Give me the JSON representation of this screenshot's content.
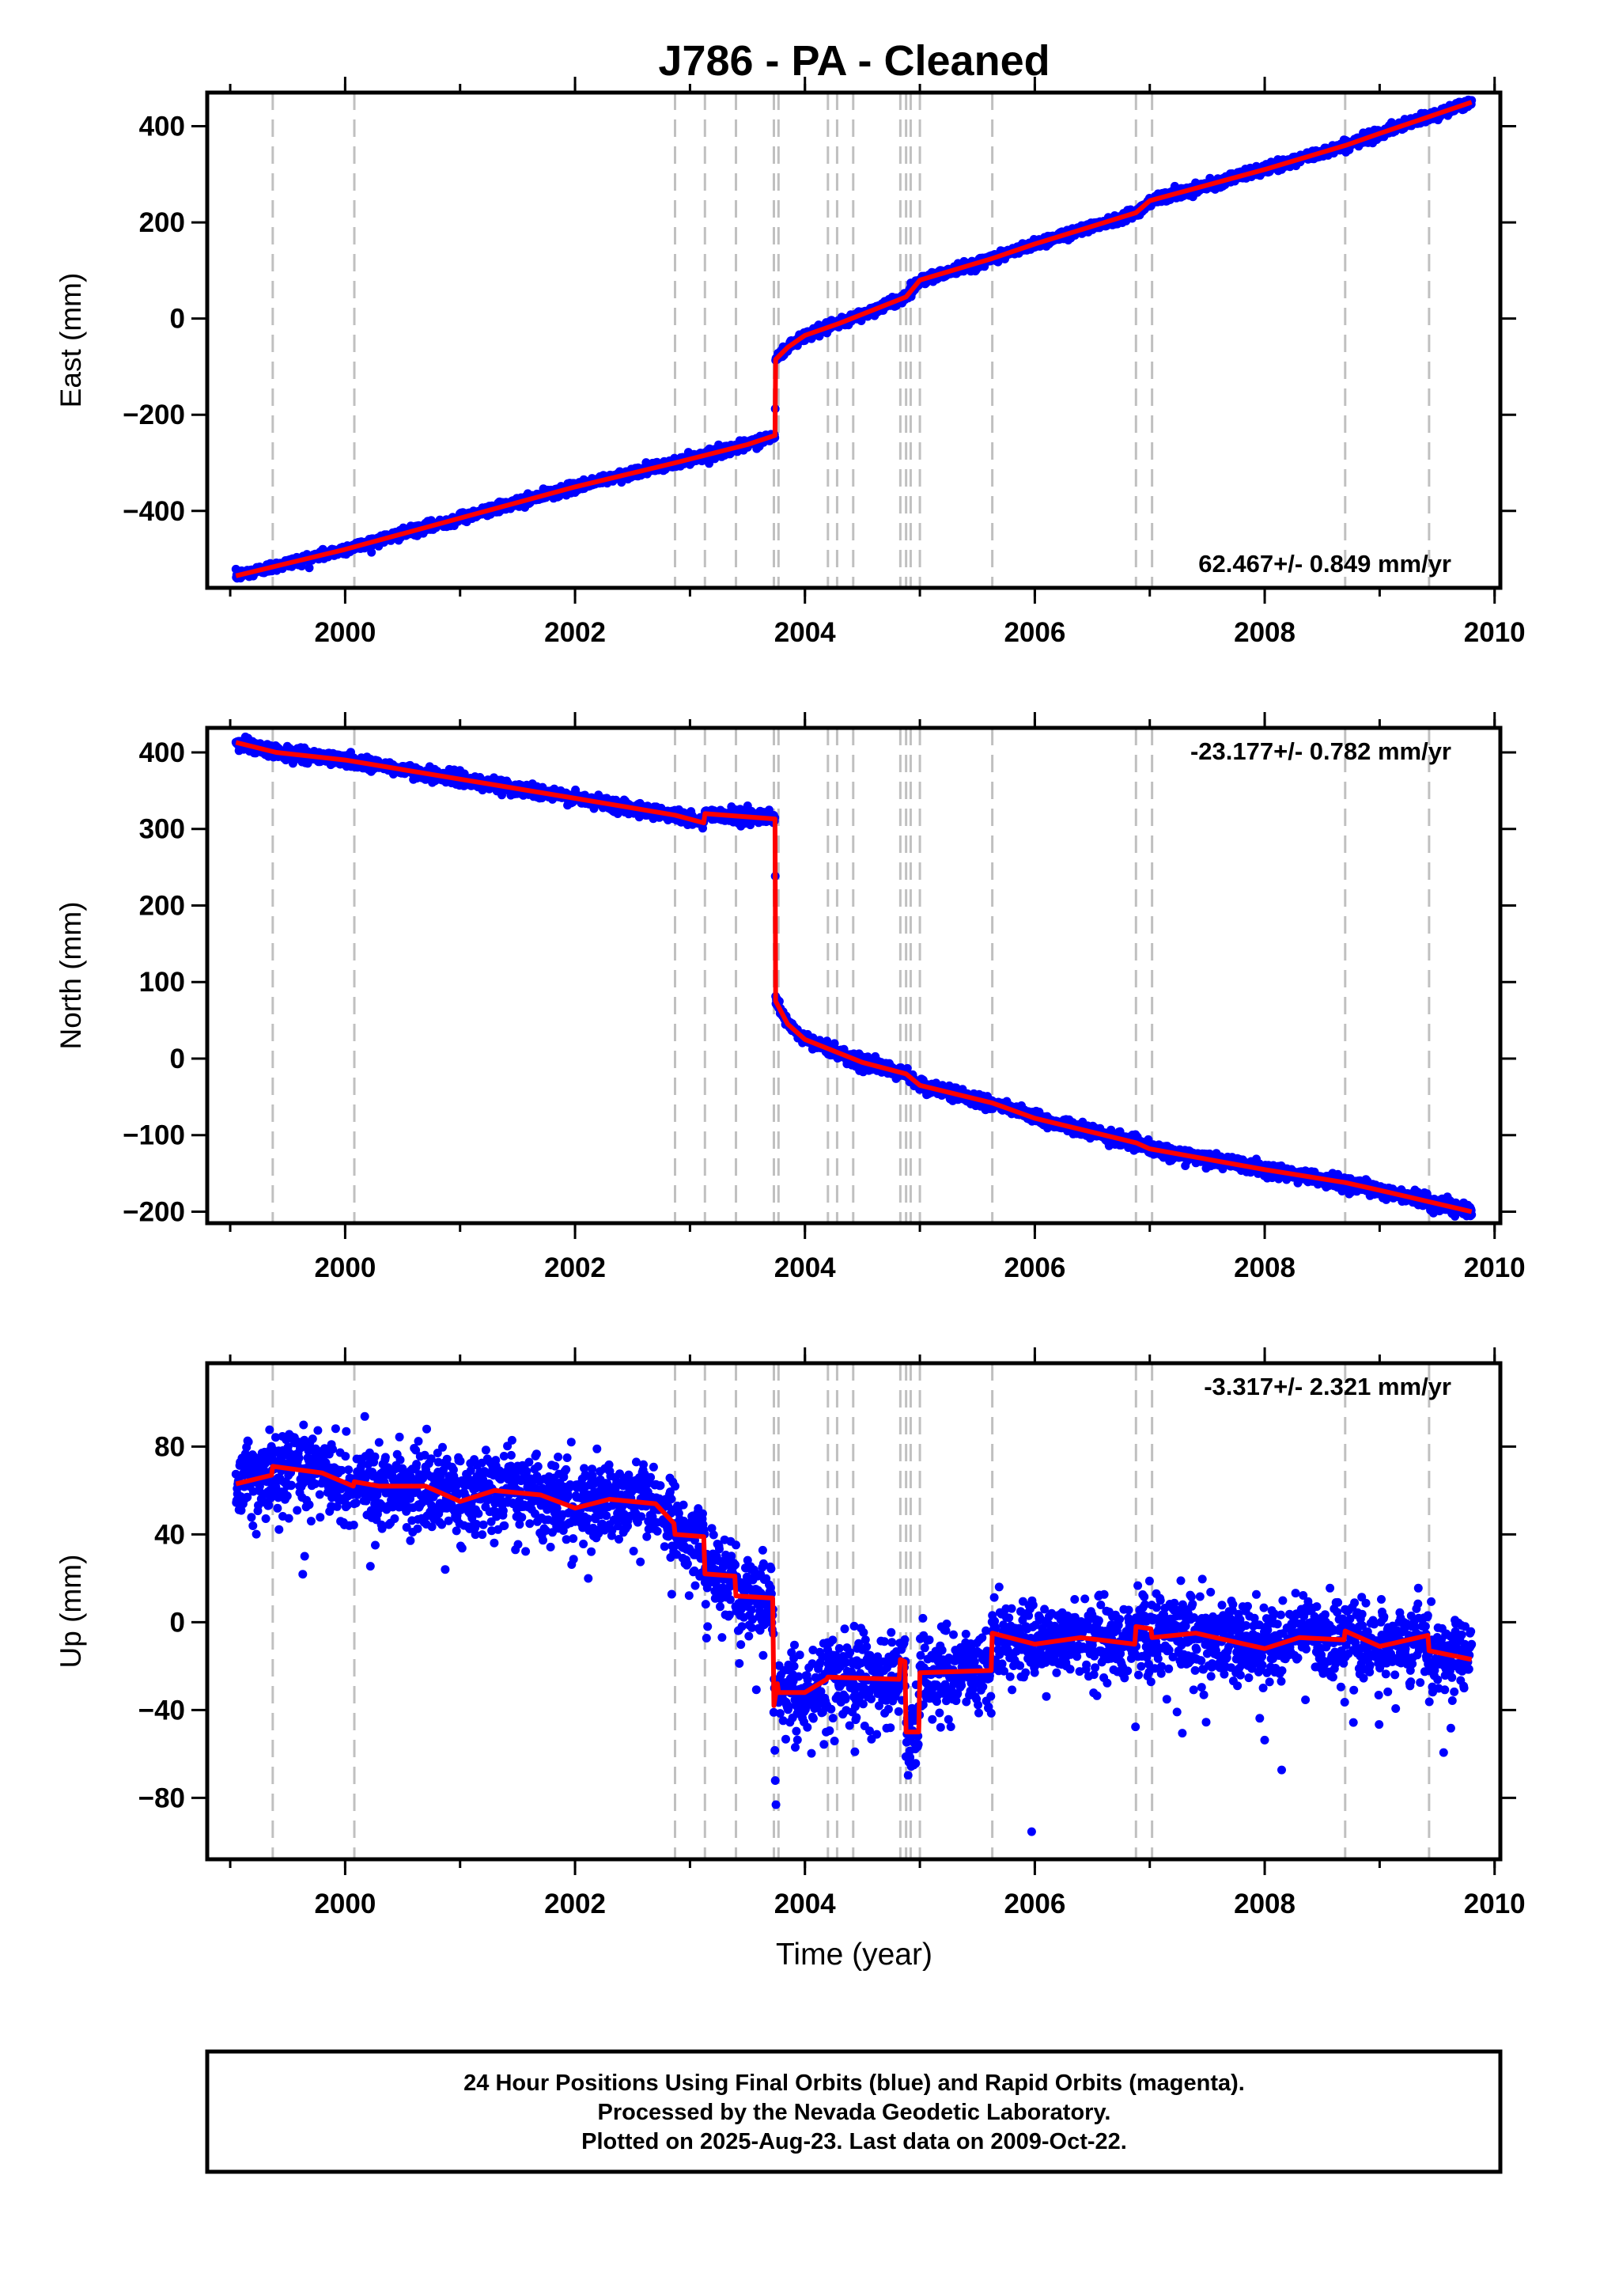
{
  "title": "J786  - PA - Cleaned",
  "xlabel": "Time (year)",
  "colors": {
    "points": "#0000ff",
    "model": "#ff0000",
    "discontinuity": "#c0c0c0",
    "frame": "#000000"
  },
  "footer": {
    "line1": "24 Hour Positions Using Final Orbits (blue) and Rapid Orbits (magenta).",
    "line2": "Processed by the Nevada Geodetic Laboratory.",
    "line3": "Plotted on 2025-Aug-23. Last data on 2009-Oct-22."
  },
  "chart_data": [
    {
      "type": "scatter",
      "component": "east",
      "ylabel": "East (mm)",
      "rate_label": "62.467+/- 0.849 mm/yr",
      "rate_position": "bottom-right",
      "xlim": [
        1998.8,
        2010.05
      ],
      "ylim": [
        -560,
        470
      ],
      "xticks": [
        2000,
        2002,
        2004,
        2006,
        2008,
        2010
      ],
      "yticks": [
        -400,
        -200,
        0,
        200,
        400
      ],
      "discontinuities": [
        1999.37,
        2000.08,
        2002.87,
        2003.13,
        2003.4,
        2003.73,
        2003.77,
        2004.2,
        2004.28,
        2004.42,
        2004.83,
        2004.88,
        2004.92,
        2005.0,
        2005.63,
        2006.88,
        2007.02,
        2008.7,
        2009.43
      ],
      "model": [
        {
          "x": 1999.05,
          "y": -535
        },
        {
          "x": 2000.0,
          "y": -480
        },
        {
          "x": 2001.0,
          "y": -415
        },
        {
          "x": 2002.0,
          "y": -350
        },
        {
          "x": 2002.87,
          "y": -300
        },
        {
          "x": 2003.5,
          "y": -262
        },
        {
          "x": 2003.74,
          "y": -243
        },
        {
          "x": 2003.745,
          "y": -85
        },
        {
          "x": 2003.85,
          "y": -60
        },
        {
          "x": 2004.0,
          "y": -35
        },
        {
          "x": 2004.3,
          "y": -10
        },
        {
          "x": 2004.88,
          "y": 45
        },
        {
          "x": 2005.0,
          "y": 80
        },
        {
          "x": 2005.63,
          "y": 125
        },
        {
          "x": 2006.0,
          "y": 155
        },
        {
          "x": 2006.88,
          "y": 220
        },
        {
          "x": 2007.0,
          "y": 245
        },
        {
          "x": 2008.0,
          "y": 310
        },
        {
          "x": 2008.7,
          "y": 360
        },
        {
          "x": 2009.0,
          "y": 385
        },
        {
          "x": 2009.8,
          "y": 450
        }
      ],
      "scatter_noise": 5
    },
    {
      "type": "scatter",
      "component": "north",
      "ylabel": "North (mm)",
      "rate_label": "-23.177+/- 0.782 mm/yr",
      "rate_position": "top-right",
      "xlim": [
        1998.8,
        2010.05
      ],
      "ylim": [
        -215,
        432
      ],
      "xticks": [
        2000,
        2002,
        2004,
        2006,
        2008,
        2010
      ],
      "yticks": [
        -200,
        -100,
        0,
        100,
        200,
        300,
        400
      ],
      "discontinuities": [
        1999.37,
        2000.08,
        2002.87,
        2003.13,
        2003.4,
        2003.73,
        2003.77,
        2004.2,
        2004.28,
        2004.42,
        2004.83,
        2004.88,
        2004.92,
        2005.0,
        2005.63,
        2006.88,
        2007.02,
        2008.7,
        2009.43
      ],
      "model": [
        {
          "x": 1999.05,
          "y": 413
        },
        {
          "x": 1999.4,
          "y": 400
        },
        {
          "x": 2000.0,
          "y": 390
        },
        {
          "x": 2001.0,
          "y": 365
        },
        {
          "x": 2002.0,
          "y": 340
        },
        {
          "x": 2002.87,
          "y": 318
        },
        {
          "x": 2003.12,
          "y": 308
        },
        {
          "x": 2003.13,
          "y": 320
        },
        {
          "x": 2003.74,
          "y": 313
        },
        {
          "x": 2003.745,
          "y": 75
        },
        {
          "x": 2003.85,
          "y": 45
        },
        {
          "x": 2004.0,
          "y": 25
        },
        {
          "x": 2004.5,
          "y": -5
        },
        {
          "x": 2004.88,
          "y": -20
        },
        {
          "x": 2005.0,
          "y": -35
        },
        {
          "x": 2005.63,
          "y": -58
        },
        {
          "x": 2006.0,
          "y": -78
        },
        {
          "x": 2006.88,
          "y": -110
        },
        {
          "x": 2007.0,
          "y": -118
        },
        {
          "x": 2008.0,
          "y": -145
        },
        {
          "x": 2008.7,
          "y": -162
        },
        {
          "x": 2009.0,
          "y": -172
        },
        {
          "x": 2009.8,
          "y": -200
        }
      ],
      "scatter_noise": 4
    },
    {
      "type": "scatter",
      "component": "up",
      "ylabel": "Up (mm)",
      "rate_label": "-3.317+/- 2.321 mm/yr",
      "rate_position": "top-right",
      "xlim": [
        1998.8,
        2010.05
      ],
      "ylim": [
        -108,
        118
      ],
      "xticks": [
        2000,
        2002,
        2004,
        2006,
        2008,
        2010
      ],
      "yticks": [
        -80,
        -40,
        0,
        40,
        80
      ],
      "discontinuities": [
        1999.37,
        2000.08,
        2002.87,
        2003.13,
        2003.4,
        2003.73,
        2003.77,
        2004.2,
        2004.28,
        2004.42,
        2004.83,
        2004.88,
        2004.92,
        2005.0,
        2005.63,
        2006.88,
        2007.02,
        2008.7,
        2009.43
      ],
      "model": [
        {
          "x": 1999.05,
          "y": 63
        },
        {
          "x": 1999.36,
          "y": 67
        },
        {
          "x": 1999.37,
          "y": 71
        },
        {
          "x": 1999.8,
          "y": 68
        },
        {
          "x": 2000.07,
          "y": 62
        },
        {
          "x": 2000.08,
          "y": 64
        },
        {
          "x": 2000.3,
          "y": 62
        },
        {
          "x": 2000.7,
          "y": 62
        },
        {
          "x": 2001.0,
          "y": 55
        },
        {
          "x": 2001.3,
          "y": 60
        },
        {
          "x": 2001.7,
          "y": 58
        },
        {
          "x": 2002.0,
          "y": 52
        },
        {
          "x": 2002.3,
          "y": 56
        },
        {
          "x": 2002.7,
          "y": 54
        },
        {
          "x": 2002.86,
          "y": 45
        },
        {
          "x": 2002.87,
          "y": 40
        },
        {
          "x": 2003.12,
          "y": 39
        },
        {
          "x": 2003.13,
          "y": 22
        },
        {
          "x": 2003.39,
          "y": 21
        },
        {
          "x": 2003.4,
          "y": 12
        },
        {
          "x": 2003.72,
          "y": 11
        },
        {
          "x": 2003.73,
          "y": -38
        },
        {
          "x": 2003.76,
          "y": -28
        },
        {
          "x": 2003.77,
          "y": -32
        },
        {
          "x": 2004.0,
          "y": -32
        },
        {
          "x": 2004.19,
          "y": -26
        },
        {
          "x": 2004.2,
          "y": -25
        },
        {
          "x": 2004.82,
          "y": -26
        },
        {
          "x": 2004.83,
          "y": -17
        },
        {
          "x": 2004.87,
          "y": -18
        },
        {
          "x": 2004.88,
          "y": -50
        },
        {
          "x": 2004.99,
          "y": -50
        },
        {
          "x": 2005.0,
          "y": -23
        },
        {
          "x": 2005.62,
          "y": -22
        },
        {
          "x": 2005.63,
          "y": -5
        },
        {
          "x": 2006.0,
          "y": -10
        },
        {
          "x": 2006.4,
          "y": -7
        },
        {
          "x": 2006.87,
          "y": -10
        },
        {
          "x": 2006.88,
          "y": -2
        },
        {
          "x": 2007.01,
          "y": -3
        },
        {
          "x": 2007.02,
          "y": -7
        },
        {
          "x": 2007.4,
          "y": -5
        },
        {
          "x": 2008.0,
          "y": -12
        },
        {
          "x": 2008.3,
          "y": -7
        },
        {
          "x": 2008.69,
          "y": -8
        },
        {
          "x": 2008.7,
          "y": -4
        },
        {
          "x": 2009.0,
          "y": -11
        },
        {
          "x": 2009.42,
          "y": -6
        },
        {
          "x": 2009.43,
          "y": -13
        },
        {
          "x": 2009.8,
          "y": -17
        }
      ],
      "scatter_noise": 9
    }
  ]
}
